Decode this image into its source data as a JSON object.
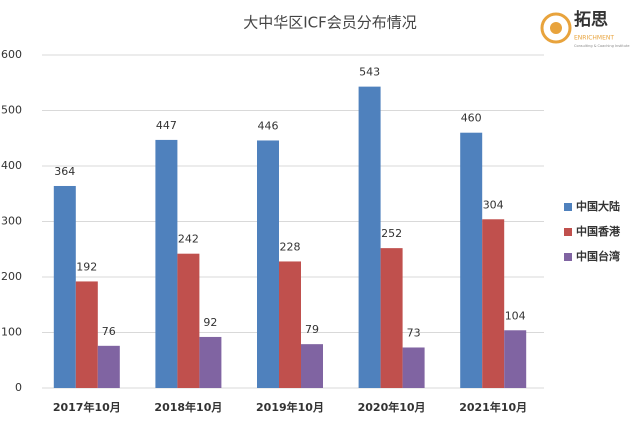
{
  "chart_data": {
    "type": "bar",
    "title": "大中华区ICF会员分布情况",
    "categories": [
      "2017年10月",
      "2018年10月",
      "2019年10月",
      "2020年10月",
      "2021年10月"
    ],
    "series": [
      {
        "name": "中国大陆",
        "color": "#4f81bd",
        "values": [
          364,
          447,
          446,
          543,
          460
        ]
      },
      {
        "name": "中国香港",
        "color": "#c0504d",
        "values": [
          192,
          242,
          228,
          252,
          304
        ]
      },
      {
        "name": "中国台湾",
        "color": "#8064a2",
        "values": [
          76,
          92,
          79,
          73,
          104
        ]
      }
    ],
    "ylim": [
      0,
      600
    ],
    "yticks": [
      0,
      100,
      200,
      300,
      400,
      500,
      600
    ],
    "grid": true,
    "legend": "right",
    "logo": {
      "name": "拓思",
      "subtitle": "ENRICHMENT",
      "tagline": "Consulting & Coaching Institute"
    }
  }
}
